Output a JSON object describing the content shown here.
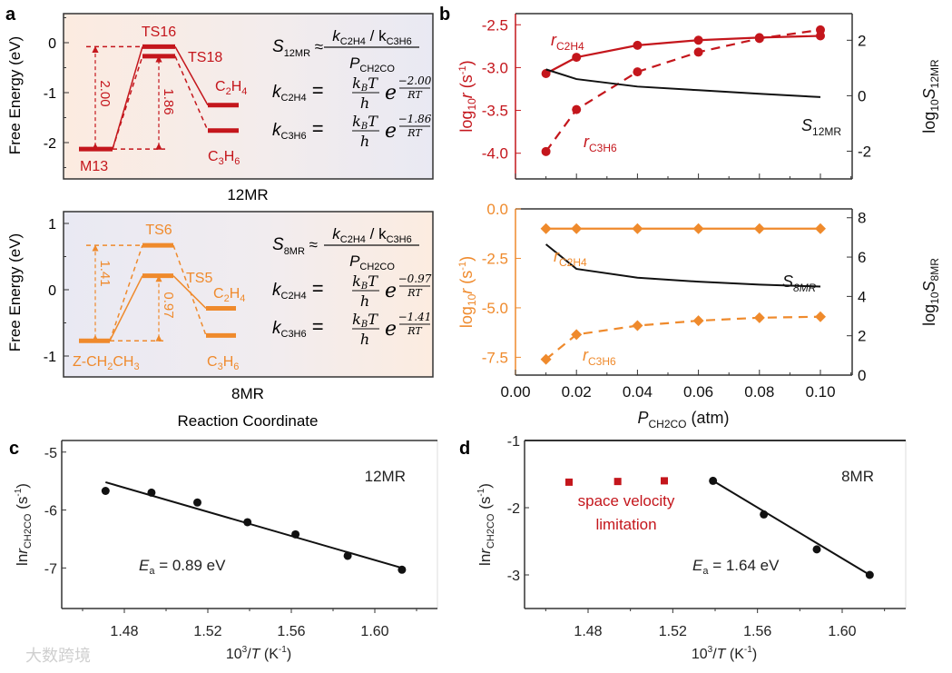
{
  "colors": {
    "red": "#c4161c",
    "orange": "#ef8a2c",
    "black": "#111111"
  },
  "watermark": "大数跨境",
  "panel_labels": [
    "a",
    "b",
    "c",
    "d"
  ],
  "panel_a": {
    "ylabel": "Free Energy (eV)",
    "xlabel": "Reaction Coordinate",
    "top": {
      "title": "12MR",
      "yticks": [
        "0",
        "-1",
        "-2"
      ],
      "levels": {
        "M13": -2.13,
        "TS16": -0.08,
        "TS18": -0.27,
        "C2H4": -1.25,
        "C3H6": -1.76
      },
      "labels": {
        "M13": "M13",
        "TS16": "TS16",
        "TS18": "TS18",
        "C2H4": "C",
        "C2H4_s1": "2",
        "C2H4_m": "H",
        "C2H4_s2": "4",
        "C3H6": "C",
        "C3H6_s1": "3",
        "C3H6_m": "H",
        "C3H6_s2": "6"
      },
      "barrier1": "2.00",
      "barrier2": "1.86",
      "formula": {
        "S": "S",
        "S_sub": "12MR",
        "approx": "≈",
        "num": "k",
        "num_sub1": "C2H4",
        "slash": " / k",
        "num_sub2": "C3H6",
        "den": "P",
        "den_sub": "CH2CO",
        "k1": "k",
        "k1_sub": "C2H4",
        "k2": "k",
        "k2_sub": "C3H6",
        "eq": "=",
        "kB": "k",
        "kB_sub": "B",
        "T": "T",
        "h": "h",
        "e": "e",
        "exp1": "−2.00",
        "exp2": "−1.86",
        "RT": "RT"
      }
    },
    "bottom": {
      "title": "8MR",
      "yticks": [
        "1",
        "0",
        "-1"
      ],
      "levels": {
        "Z": -0.77,
        "TS6": 0.67,
        "TS5": 0.21,
        "C2H4": -0.28,
        "C3H6": -0.69
      },
      "labels": {
        "Z": "Z-CH",
        "Z_s1": "2",
        "Z_m": "CH",
        "Z_s2": "3",
        "TS6": "TS6",
        "TS5": "TS5",
        "C2H4": "C",
        "C2H4_s1": "2",
        "C2H4_m": "H",
        "C2H4_s2": "4",
        "C3H6": "C",
        "C3H6_s1": "3",
        "C3H6_m": "H",
        "C3H6_s2": "6"
      },
      "barrier1": "1.41",
      "barrier2": "0.97",
      "formula": {
        "S": "S",
        "S_sub": "8MR",
        "approx": "≈",
        "num": "k",
        "num_sub1": "C2H4",
        "slash": " / k",
        "num_sub2": "C3H6",
        "den": "P",
        "den_sub": "CH2CO",
        "k1": "k",
        "k1_sub": "C2H4",
        "k2": "k",
        "k2_sub": "C3H6",
        "eq": "=",
        "kB": "k",
        "kB_sub": "B",
        "T": "T",
        "h": "h",
        "e": "e",
        "exp1": "−0.97",
        "exp2": "−1.41",
        "RT": "RT"
      }
    }
  },
  "chart_data": [
    {
      "panel": "b-top",
      "type": "line",
      "x": [
        0.01,
        0.02,
        0.04,
        0.06,
        0.08,
        0.1
      ],
      "xlim": [
        0,
        0.11
      ],
      "ylim": [
        -4.3,
        -2.4
      ],
      "y2lim": [
        -3,
        3
      ],
      "yticks": [
        "-2.5",
        "-3.0",
        "-3.5",
        "-4.0"
      ],
      "y2ticks": [
        "2",
        "0",
        "-2"
      ],
      "ylabel": {
        "a": "log",
        "sub": "10",
        "b": "r",
        "c": " (s",
        "sup": "-1",
        "d": ")"
      },
      "y2label": {
        "a": "log",
        "sub": "10",
        "b": "S",
        "sub2": "12MR"
      },
      "series": [
        {
          "name": "r_C2H4",
          "label": "r",
          "label_sub": "C2H4",
          "axis": "left",
          "style": "solid-circle",
          "values": [
            -3.07,
            -2.88,
            -2.74,
            -2.68,
            -2.65,
            -2.63
          ]
        },
        {
          "name": "r_C3H6",
          "label": "r",
          "label_sub": "C3H6",
          "axis": "left",
          "style": "dashed-circle",
          "values": [
            -3.98,
            -3.49,
            -3.05,
            -2.82,
            -2.66,
            -2.56
          ]
        },
        {
          "name": "S_12MR",
          "label": "S",
          "label_sub": "12MR",
          "axis": "right",
          "style": "solid-black",
          "values": [
            0.95,
            0.6,
            0.33,
            0.2,
            0.07,
            -0.05
          ]
        }
      ]
    },
    {
      "panel": "b-bottom",
      "type": "line",
      "x": [
        0.01,
        0.02,
        0.04,
        0.06,
        0.08,
        0.1
      ],
      "xlim": [
        0,
        0.11
      ],
      "ylim": [
        -8.1,
        0
      ],
      "y2lim": [
        0,
        8.6
      ],
      "yticks": [
        "0.0",
        "-2.5",
        "-5.0",
        "-7.5"
      ],
      "y2ticks": [
        "0",
        "2",
        "4",
        "6",
        "8"
      ],
      "xticks": [
        "0.00",
        "0.02",
        "0.04",
        "0.06",
        "0.08",
        "0.10"
      ],
      "xlabel": {
        "a": "P",
        "sub": "CH2CO",
        "b": " (atm)"
      },
      "ylabel": {
        "a": "log",
        "sub": "10",
        "b": "r",
        "c": " (s",
        "sup": "-1",
        "d": ")"
      },
      "y2label": {
        "a": "log",
        "sub": "10",
        "b": "S",
        "sub2": "8MR"
      },
      "series": [
        {
          "name": "r_C2H4",
          "label": "r",
          "label_sub": "C2H4",
          "axis": "left",
          "style": "solid-diamond",
          "values": [
            -1.0,
            -1.0,
            -1.0,
            -1.0,
            -1.0,
            -1.0
          ]
        },
        {
          "name": "r_C3H6",
          "label": "r",
          "label_sub": "C3H6",
          "axis": "left",
          "style": "dashed-diamond",
          "values": [
            -7.6,
            -6.35,
            -5.9,
            -5.65,
            -5.5,
            -5.45
          ]
        },
        {
          "name": "S_8MR",
          "label": "S",
          "label_sub": "8MR",
          "axis": "right",
          "style": "solid-black",
          "values": [
            6.65,
            5.4,
            4.95,
            4.75,
            4.6,
            4.5
          ]
        }
      ]
    },
    {
      "panel": "c",
      "type": "scatter",
      "title": "12MR",
      "annotation": {
        "a": "E",
        "sub": "a",
        "b": " = 0.89 eV"
      },
      "xlim": [
        1.45,
        1.63
      ],
      "ylim": [
        -7.7,
        -4.8
      ],
      "xticks": [
        "1.48",
        "1.52",
        "1.56",
        "1.60"
      ],
      "yticks": [
        "-5",
        "-6",
        "-7"
      ],
      "xlabel": {
        "a": "10",
        "sup": "3",
        "b": "/",
        "c": "T",
        "d": " (K",
        "sup2": "-1",
        "e": ")"
      },
      "ylabel": {
        "a": "ln",
        "b": "r",
        "sub": "CH2CO",
        "c": " (s",
        "sup": "-1",
        "d": ")"
      },
      "points": {
        "x": [
          1.471,
          1.493,
          1.515,
          1.539,
          1.562,
          1.587,
          1.613
        ],
        "y": [
          -5.67,
          -5.7,
          -5.87,
          -6.21,
          -6.42,
          -6.79,
          -7.03
        ]
      },
      "fit": {
        "x": [
          1.471,
          1.613
        ],
        "y": [
          -5.52,
          -7.0
        ]
      }
    },
    {
      "panel": "d",
      "type": "scatter",
      "title": "8MR",
      "annotation": {
        "a": "E",
        "sub": "a",
        "b": " = 1.64 eV"
      },
      "note": [
        "space velocity",
        "limitation"
      ],
      "xlim": [
        1.45,
        1.63
      ],
      "ylim": [
        -3.5,
        -1
      ],
      "xticks": [
        "1.48",
        "1.52",
        "1.56",
        "1.60"
      ],
      "yticks": [
        "-1",
        "-2",
        "-3"
      ],
      "xlabel": {
        "a": "10",
        "sup": "3",
        "b": "/",
        "c": "T",
        "d": " (K",
        "sup2": "-1",
        "e": ")"
      },
      "ylabel": {
        "a": "ln",
        "b": "r",
        "sub": "CH2CO",
        "c": " (s",
        "sup": "-1",
        "d": ")"
      },
      "points": {
        "x": [
          1.539,
          1.563,
          1.588,
          1.613
        ],
        "y": [
          -1.6,
          -2.1,
          -2.62,
          -3.0
        ]
      },
      "limited_points": {
        "x": [
          1.471,
          1.494,
          1.516
        ],
        "y": [
          -1.62,
          -1.61,
          -1.6
        ]
      },
      "fit": {
        "x": [
          1.539,
          1.613
        ],
        "y": [
          -1.6,
          -3.0
        ]
      }
    }
  ]
}
